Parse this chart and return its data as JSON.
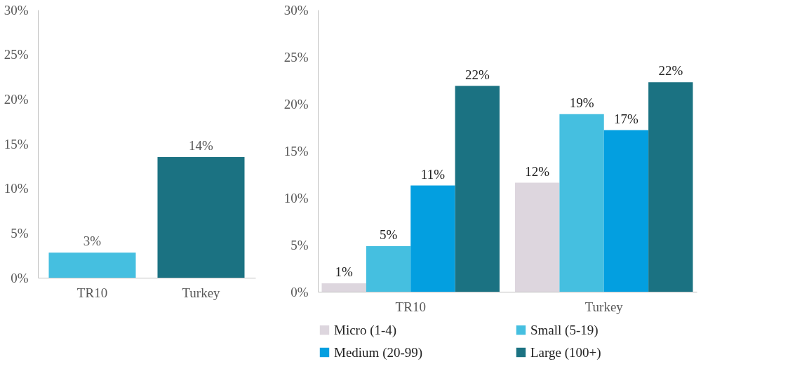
{
  "chart_data": [
    {
      "type": "bar",
      "categories": [
        "TR10",
        "Turkey"
      ],
      "values": [
        2.8,
        13.5
      ],
      "colors": [
        "#45bfe0",
        "#1b7282"
      ],
      "value_labels": [
        "3%",
        "14%"
      ],
      "ylim": [
        0,
        30
      ],
      "yticks": [
        {
          "value": 0,
          "label": "0%"
        },
        {
          "value": 5,
          "label": "5%"
        },
        {
          "value": 10,
          "label": "10%"
        },
        {
          "value": 15,
          "label": "15%"
        },
        {
          "value": 20,
          "label": "20%"
        },
        {
          "value": 25,
          "label": "25%"
        },
        {
          "value": 30,
          "label": "30%"
        }
      ],
      "grid": false,
      "legend": false
    },
    {
      "type": "bar",
      "categories": [
        "TR10",
        "Turkey"
      ],
      "series": [
        {
          "name": "Micro (1-4)",
          "color": "#ddd6de",
          "values": [
            0.9,
            11.6
          ],
          "value_labels": [
            "1%",
            "12%"
          ]
        },
        {
          "name": "Small (5-19)",
          "color": "#45bfe0",
          "values": [
            4.85,
            18.9
          ],
          "value_labels": [
            "5%",
            "19%"
          ]
        },
        {
          "name": "Medium (20-99)",
          "color": "#039fe0",
          "values": [
            11.3,
            17.2
          ],
          "value_labels": [
            "11%",
            "17%"
          ]
        },
        {
          "name": "Large (100+)",
          "color": "#1b7282",
          "values": [
            21.9,
            22.3
          ],
          "value_labels": [
            "22%",
            "22%"
          ]
        }
      ],
      "ylim": [
        0,
        30
      ],
      "yticks": [
        {
          "value": 0,
          "label": "0%"
        },
        {
          "value": 5,
          "label": "5%"
        },
        {
          "value": 10,
          "label": "10%"
        },
        {
          "value": 15,
          "label": "15%"
        },
        {
          "value": 20,
          "label": "20%"
        },
        {
          "value": 25,
          "label": "25%"
        },
        {
          "value": 30,
          "label": "30%"
        }
      ],
      "grid": false,
      "legend": "bottom"
    }
  ]
}
